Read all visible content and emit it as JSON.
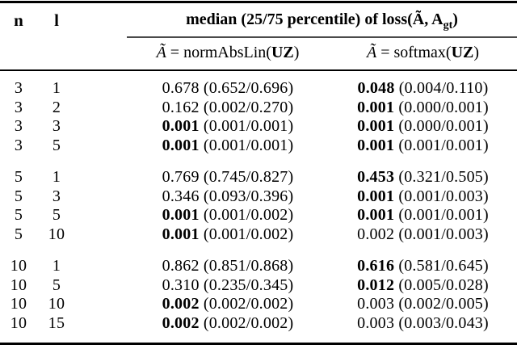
{
  "colors": {
    "background": "#ffffff",
    "text": "#000000",
    "rule": "#000000",
    "cmidrule": "#4a4a4a"
  },
  "table": {
    "columns": {
      "n": "n",
      "l": "l"
    },
    "span_header": {
      "prefix": "median (25/75 percentile) of loss(",
      "a_tilde": "Ã",
      "separator": ", ",
      "a": "A",
      "a_subscript": "gt",
      "suffix": ")"
    },
    "subheaders": {
      "normabslin": {
        "a_tilde": "Ã",
        "body": " = normAbsLin(",
        "uz": "UZ",
        "close": ")"
      },
      "softmax": {
        "a_tilde": "Ã",
        "body": " = softmax(",
        "uz": "UZ",
        "close": ")"
      }
    },
    "rows": [
      {
        "n": "3",
        "l": "1",
        "norm": {
          "median": "0.678",
          "bold": false,
          "range": "(0.652/0.696)"
        },
        "soft": {
          "median": "0.048",
          "bold": true,
          "range": "(0.004/0.110)"
        }
      },
      {
        "n": "3",
        "l": "2",
        "norm": {
          "median": "0.162",
          "bold": false,
          "range": "(0.002/0.270)"
        },
        "soft": {
          "median": "0.001",
          "bold": true,
          "range": "(0.000/0.001)"
        }
      },
      {
        "n": "3",
        "l": "3",
        "norm": {
          "median": "0.001",
          "bold": true,
          "range": "(0.001/0.001)"
        },
        "soft": {
          "median": "0.001",
          "bold": true,
          "range": "(0.000/0.001)"
        }
      },
      {
        "n": "3",
        "l": "5",
        "norm": {
          "median": "0.001",
          "bold": true,
          "range": "(0.001/0.001)"
        },
        "soft": {
          "median": "0.001",
          "bold": true,
          "range": "(0.001/0.001)"
        }
      },
      {
        "n": "5",
        "l": "1",
        "norm": {
          "median": "0.769",
          "bold": false,
          "range": "(0.745/0.827)"
        },
        "soft": {
          "median": "0.453",
          "bold": true,
          "range": "(0.321/0.505)"
        }
      },
      {
        "n": "5",
        "l": "3",
        "norm": {
          "median": "0.346",
          "bold": false,
          "range": "(0.093/0.396)"
        },
        "soft": {
          "median": "0.001",
          "bold": true,
          "range": "(0.001/0.003)"
        }
      },
      {
        "n": "5",
        "l": "5",
        "norm": {
          "median": "0.001",
          "bold": true,
          "range": "(0.001/0.002)"
        },
        "soft": {
          "median": "0.001",
          "bold": true,
          "range": "(0.001/0.001)"
        }
      },
      {
        "n": "5",
        "l": "10",
        "norm": {
          "median": "0.001",
          "bold": true,
          "range": "(0.001/0.002)"
        },
        "soft": {
          "median": "0.002",
          "bold": false,
          "range": "(0.001/0.003)"
        }
      },
      {
        "n": "10",
        "l": "1",
        "norm": {
          "median": "0.862",
          "bold": false,
          "range": "(0.851/0.868)"
        },
        "soft": {
          "median": "0.616",
          "bold": true,
          "range": "(0.581/0.645)"
        }
      },
      {
        "n": "10",
        "l": "5",
        "norm": {
          "median": "0.310",
          "bold": false,
          "range": "(0.235/0.345)"
        },
        "soft": {
          "median": "0.012",
          "bold": true,
          "range": "(0.005/0.028)"
        }
      },
      {
        "n": "10",
        "l": "10",
        "norm": {
          "median": "0.002",
          "bold": true,
          "range": "(0.002/0.002)"
        },
        "soft": {
          "median": "0.003",
          "bold": false,
          "range": "(0.002/0.005)"
        }
      },
      {
        "n": "10",
        "l": "15",
        "norm": {
          "median": "0.002",
          "bold": true,
          "range": "(0.002/0.002)"
        },
        "soft": {
          "median": "0.003",
          "bold": false,
          "range": "(0.003/0.043)"
        }
      }
    ]
  }
}
